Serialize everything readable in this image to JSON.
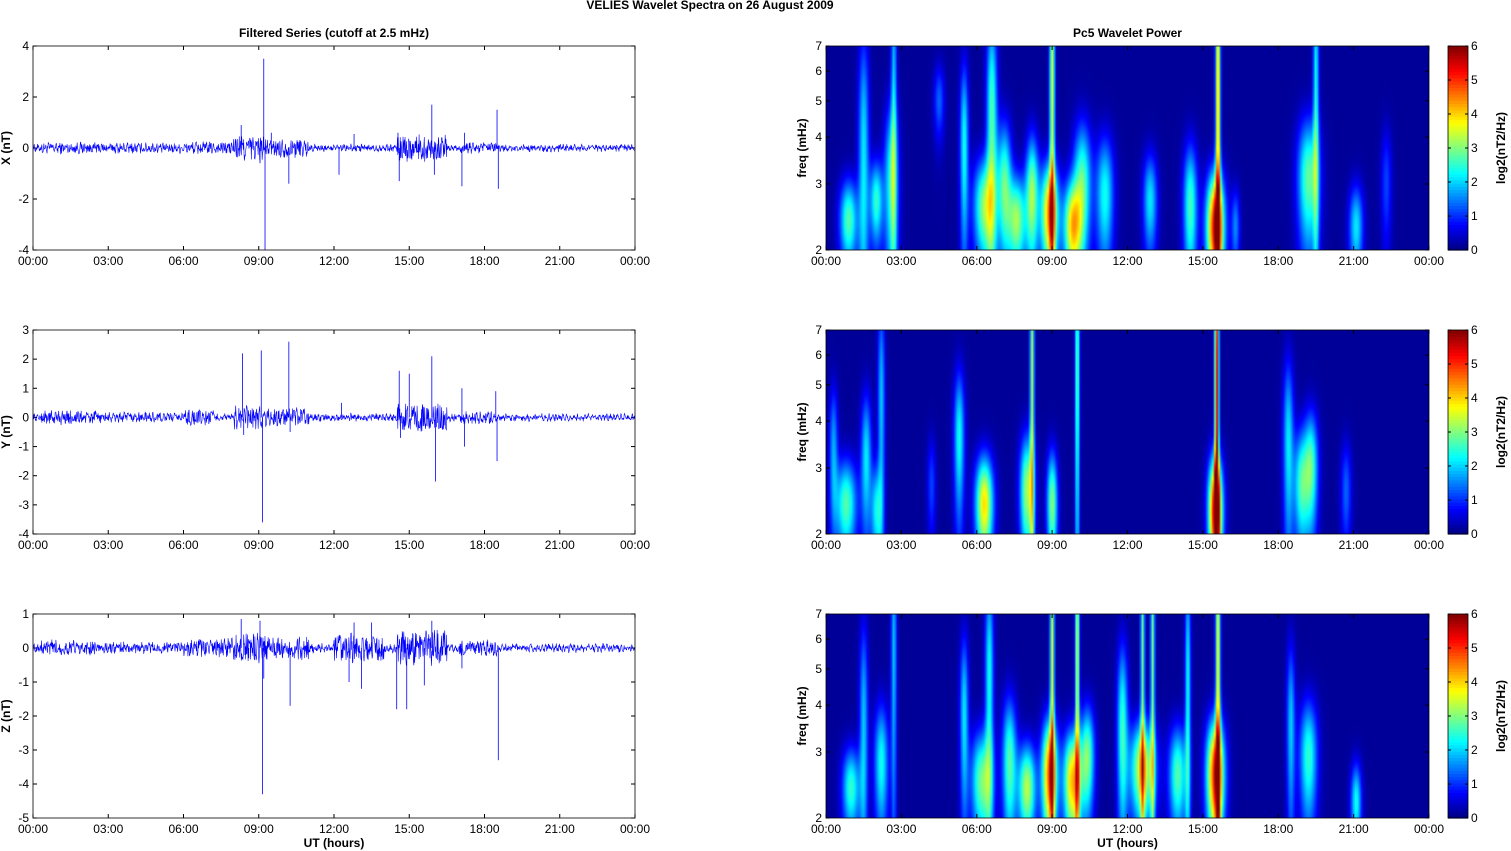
{
  "figure": {
    "title": "VELIES Wavelet Spectra on 26 August    2009"
  },
  "chart_data": [
    {
      "type": "line",
      "panel": "X",
      "title": "Filtered Series (cutoff at 2.5 mHz)",
      "xlabel": "",
      "ylabel": "X (nT)",
      "xlim": [
        0,
        24
      ],
      "ylim": [
        -4,
        4
      ],
      "xticks": [
        "00:00",
        "03:00",
        "06:00",
        "09:00",
        "12:00",
        "15:00",
        "18:00",
        "21:00",
        "00:00"
      ],
      "yticks": [
        "-4",
        "-2",
        "0",
        "2",
        "4"
      ],
      "ytick_values": [
        -4,
        -2,
        0,
        2,
        4
      ],
      "color": "#0000ff",
      "noise_amplitude_nT": 0.12,
      "active_intervals_h": [
        [
          0.3,
          2.5,
          0.2
        ],
        [
          2.5,
          6,
          0.18
        ],
        [
          6,
          8,
          0.22
        ],
        [
          8,
          9.2,
          0.5
        ],
        [
          9.2,
          11,
          0.35
        ],
        [
          14.5,
          16.5,
          0.5
        ],
        [
          17,
          18.5,
          0.2
        ]
      ],
      "spikes": [
        {
          "t": 8.3,
          "v": 0.9
        },
        {
          "t": 9.05,
          "v": -0.6
        },
        {
          "t": 9.2,
          "v": 3.5
        },
        {
          "t": 9.25,
          "v": -4.0
        },
        {
          "t": 9.5,
          "v": 0.6
        },
        {
          "t": 10.2,
          "v": -1.4
        },
        {
          "t": 12.2,
          "v": -1.05
        },
        {
          "t": 12.8,
          "v": 0.55
        },
        {
          "t": 14.55,
          "v": 0.6
        },
        {
          "t": 14.6,
          "v": -1.3
        },
        {
          "t": 15.9,
          "v": 1.7
        },
        {
          "t": 16.0,
          "v": -1.05
        },
        {
          "t": 17.1,
          "v": -1.5
        },
        {
          "t": 17.2,
          "v": 0.6
        },
        {
          "t": 18.5,
          "v": 1.5
        },
        {
          "t": 18.55,
          "v": -1.6
        }
      ]
    },
    {
      "type": "heatmap",
      "panel": "X",
      "title": "Pc5 Wavelet Power",
      "xlabel": "",
      "ylabel": "freq (mHz)",
      "xlim": [
        0,
        24
      ],
      "ylim": [
        2,
        7
      ],
      "yscale": "log",
      "xticks": [
        "00:00",
        "03:00",
        "06:00",
        "09:00",
        "12:00",
        "15:00",
        "18:00",
        "21:00",
        "00:00"
      ],
      "yticks": [
        "2",
        "3",
        "4",
        "5",
        "6",
        "7"
      ],
      "ytick_values": [
        2,
        3,
        4,
        5,
        6,
        7
      ],
      "colormap": "jet",
      "clim": [
        0,
        6
      ],
      "colorbar": {
        "label": "log2(nT2/Hz)",
        "ticks": [
          "0",
          "1",
          "2",
          "3",
          "4",
          "5",
          "6"
        ]
      },
      "blobs": [
        {
          "t": 0.9,
          "f": 2.4,
          "a": 2.6,
          "w": 0.25,
          "h": 0.45
        },
        {
          "t": 1.5,
          "f": 3.5,
          "a": 2.0,
          "w": 0.15,
          "h": 2.5
        },
        {
          "t": 2.0,
          "f": 2.7,
          "a": 2.4,
          "w": 0.18,
          "h": 0.5
        },
        {
          "t": 2.6,
          "f": 3.0,
          "a": 2.3,
          "w": 0.2,
          "h": 1.2
        },
        {
          "t": 2.7,
          "f": 5.5,
          "a": 1.8,
          "w": 0.08,
          "h": 3.5
        },
        {
          "t": 4.5,
          "f": 5.0,
          "a": 1.2,
          "w": 0.15,
          "h": 0.8
        },
        {
          "t": 5.5,
          "f": 3.8,
          "a": 2.2,
          "w": 0.12,
          "h": 1.6
        },
        {
          "t": 6.3,
          "f": 2.6,
          "a": 2.9,
          "w": 0.3,
          "h": 0.6
        },
        {
          "t": 6.6,
          "f": 4.5,
          "a": 2.6,
          "w": 0.15,
          "h": 2.5
        },
        {
          "t": 7.1,
          "f": 3.0,
          "a": 2.6,
          "w": 0.2,
          "h": 0.9
        },
        {
          "t": 7.6,
          "f": 2.4,
          "a": 3.0,
          "w": 0.25,
          "h": 0.5
        },
        {
          "t": 8.2,
          "f": 2.8,
          "a": 3.0,
          "w": 0.18,
          "h": 0.8
        },
        {
          "t": 8.9,
          "f": 2.5,
          "a": 4.2,
          "w": 0.25,
          "h": 0.6
        },
        {
          "t": 9.0,
          "f": 5.5,
          "a": 3.4,
          "w": 0.07,
          "h": 4.0
        },
        {
          "t": 9.8,
          "f": 2.3,
          "a": 3.6,
          "w": 0.25,
          "h": 0.5
        },
        {
          "t": 10.2,
          "f": 3.0,
          "a": 2.6,
          "w": 0.25,
          "h": 0.9
        },
        {
          "t": 11.1,
          "f": 2.8,
          "a": 2.2,
          "w": 0.25,
          "h": 0.8
        },
        {
          "t": 12.9,
          "f": 2.7,
          "a": 2.0,
          "w": 0.2,
          "h": 0.6
        },
        {
          "t": 14.5,
          "f": 2.6,
          "a": 2.5,
          "w": 0.2,
          "h": 0.8
        },
        {
          "t": 15.5,
          "f": 2.3,
          "a": 5.3,
          "w": 0.25,
          "h": 0.6
        },
        {
          "t": 15.6,
          "f": 5.0,
          "a": 4.0,
          "w": 0.07,
          "h": 5.0
        },
        {
          "t": 16.3,
          "f": 2.3,
          "a": 1.4,
          "w": 0.12,
          "h": 0.4
        },
        {
          "t": 19.2,
          "f": 3.1,
          "a": 2.7,
          "w": 0.3,
          "h": 0.9
        },
        {
          "t": 19.5,
          "f": 5.5,
          "a": 2.2,
          "w": 0.08,
          "h": 3.5
        },
        {
          "t": 21.1,
          "f": 2.3,
          "a": 2.0,
          "w": 0.2,
          "h": 0.45
        },
        {
          "t": 22.3,
          "f": 3.0,
          "a": 1.0,
          "w": 0.15,
          "h": 0.8
        }
      ]
    },
    {
      "type": "line",
      "panel": "Y",
      "title": "",
      "xlabel": "",
      "ylabel": "Y (nT)",
      "xlim": [
        0,
        24
      ],
      "ylim": [
        -4,
        3
      ],
      "xticks": [
        "00:00",
        "03:00",
        "06:00",
        "09:00",
        "12:00",
        "15:00",
        "18:00",
        "21:00",
        "00:00"
      ],
      "yticks": [
        "-4",
        "-3",
        "-2",
        "-1",
        "0",
        "1",
        "2",
        "3"
      ],
      "ytick_values": [
        -4,
        -3,
        -2,
        -1,
        0,
        1,
        2,
        3
      ],
      "color": "#0000ff",
      "noise_amplitude_nT": 0.1,
      "active_intervals_h": [
        [
          0.3,
          2.5,
          0.22
        ],
        [
          2.5,
          6,
          0.15
        ],
        [
          6,
          7.2,
          0.25
        ],
        [
          8,
          9.2,
          0.4
        ],
        [
          9.2,
          11,
          0.3
        ],
        [
          14.5,
          16.5,
          0.45
        ],
        [
          17,
          18.5,
          0.18
        ]
      ],
      "spikes": [
        {
          "t": 8.35,
          "v": 2.2
        },
        {
          "t": 8.4,
          "v": -0.6
        },
        {
          "t": 9.1,
          "v": 2.3
        },
        {
          "t": 9.15,
          "v": -3.6
        },
        {
          "t": 10.2,
          "v": 2.6
        },
        {
          "t": 10.25,
          "v": -0.5
        },
        {
          "t": 12.3,
          "v": 0.5
        },
        {
          "t": 14.6,
          "v": 1.6
        },
        {
          "t": 14.65,
          "v": -0.7
        },
        {
          "t": 15.0,
          "v": 1.5
        },
        {
          "t": 15.9,
          "v": 2.1
        },
        {
          "t": 16.05,
          "v": -2.2
        },
        {
          "t": 17.1,
          "v": 1.0
        },
        {
          "t": 17.2,
          "v": -1.0
        },
        {
          "t": 18.45,
          "v": 0.9
        },
        {
          "t": 18.5,
          "v": -1.5
        }
      ]
    },
    {
      "type": "heatmap",
      "panel": "Y",
      "title": "",
      "xlabel": "",
      "ylabel": "freq (mHz)",
      "xlim": [
        0,
        24
      ],
      "ylim": [
        2,
        7
      ],
      "yscale": "log",
      "xticks": [
        "00:00",
        "03:00",
        "06:00",
        "09:00",
        "12:00",
        "15:00",
        "18:00",
        "21:00",
        "00:00"
      ],
      "yticks": [
        "2",
        "3",
        "4",
        "5",
        "6",
        "7"
      ],
      "ytick_values": [
        2,
        3,
        4,
        5,
        6,
        7
      ],
      "colormap": "jet",
      "clim": [
        0,
        6
      ],
      "colorbar": {
        "label": "log2(nT2/Hz)",
        "ticks": [
          "0",
          "1",
          "2",
          "3",
          "4",
          "5",
          "6"
        ]
      },
      "blobs": [
        {
          "t": 0.3,
          "f": 3.4,
          "a": 1.6,
          "w": 0.12,
          "h": 1.0
        },
        {
          "t": 0.8,
          "f": 2.4,
          "a": 2.6,
          "w": 0.3,
          "h": 0.5
        },
        {
          "t": 1.6,
          "f": 3.2,
          "a": 2.0,
          "w": 0.15,
          "h": 1.0
        },
        {
          "t": 2.0,
          "f": 2.3,
          "a": 2.0,
          "w": 0.15,
          "h": 0.5
        },
        {
          "t": 2.2,
          "f": 4.5,
          "a": 1.8,
          "w": 0.1,
          "h": 2.5
        },
        {
          "t": 4.2,
          "f": 2.7,
          "a": 1.0,
          "w": 0.12,
          "h": 0.6
        },
        {
          "t": 5.3,
          "f": 3.6,
          "a": 2.2,
          "w": 0.15,
          "h": 1.2
        },
        {
          "t": 6.3,
          "f": 2.4,
          "a": 3.8,
          "w": 0.25,
          "h": 0.55
        },
        {
          "t": 8.0,
          "f": 2.6,
          "a": 3.1,
          "w": 0.2,
          "h": 0.7
        },
        {
          "t": 8.2,
          "f": 5.5,
          "a": 3.2,
          "w": 0.06,
          "h": 4.0
        },
        {
          "t": 9.0,
          "f": 2.4,
          "a": 2.9,
          "w": 0.15,
          "h": 0.6
        },
        {
          "t": 10.0,
          "f": 5.5,
          "a": 2.8,
          "w": 0.06,
          "h": 4.0
        },
        {
          "t": 15.5,
          "f": 2.3,
          "a": 5.5,
          "w": 0.2,
          "h": 0.6
        },
        {
          "t": 15.55,
          "f": 5.0,
          "a": 5.3,
          "w": 0.06,
          "h": 5.0
        },
        {
          "t": 18.4,
          "f": 3.5,
          "a": 2.0,
          "w": 0.15,
          "h": 1.5
        },
        {
          "t": 18.9,
          "f": 2.7,
          "a": 2.3,
          "w": 0.2,
          "h": 0.7
        },
        {
          "t": 19.3,
          "f": 3.0,
          "a": 2.6,
          "w": 0.2,
          "h": 0.8
        },
        {
          "t": 20.7,
          "f": 2.6,
          "a": 1.2,
          "w": 0.15,
          "h": 0.6
        }
      ]
    },
    {
      "type": "line",
      "panel": "Z",
      "title": "",
      "xlabel": "UT (hours)",
      "ylabel": "Z (nT)",
      "xlim": [
        0,
        24
      ],
      "ylim": [
        -5,
        1
      ],
      "xticks": [
        "00:00",
        "03:00",
        "06:00",
        "09:00",
        "12:00",
        "15:00",
        "18:00",
        "21:00",
        "00:00"
      ],
      "yticks": [
        "-5",
        "-4",
        "-3",
        "-2",
        "-1",
        "0",
        "1"
      ],
      "ytick_values": [
        -5,
        -4,
        -3,
        -2,
        -1,
        0,
        1
      ],
      "color": "#0000ff",
      "noise_amplitude_nT": 0.1,
      "active_intervals_h": [
        [
          0.3,
          2.5,
          0.2
        ],
        [
          2.5,
          6,
          0.15
        ],
        [
          6,
          8,
          0.25
        ],
        [
          8,
          9.2,
          0.4
        ],
        [
          9.2,
          11,
          0.35
        ],
        [
          12,
          14,
          0.4
        ],
        [
          14.5,
          16.5,
          0.5
        ],
        [
          17,
          18.5,
          0.2
        ]
      ],
      "spikes": [
        {
          "t": 8.3,
          "v": 0.85
        },
        {
          "t": 8.6,
          "v": -0.3
        },
        {
          "t": 9.05,
          "v": 0.8
        },
        {
          "t": 9.15,
          "v": -4.3
        },
        {
          "t": 9.2,
          "v": -0.9
        },
        {
          "t": 10.25,
          "v": -1.7
        },
        {
          "t": 12.6,
          "v": -1.0
        },
        {
          "t": 12.8,
          "v": 0.75
        },
        {
          "t": 13.1,
          "v": -1.2
        },
        {
          "t": 13.5,
          "v": 0.75
        },
        {
          "t": 14.5,
          "v": -1.8
        },
        {
          "t": 14.9,
          "v": -1.8
        },
        {
          "t": 15.6,
          "v": -1.1
        },
        {
          "t": 15.9,
          "v": 0.8
        },
        {
          "t": 17.1,
          "v": -0.6
        },
        {
          "t": 18.55,
          "v": -3.3
        }
      ]
    },
    {
      "type": "heatmap",
      "panel": "Z",
      "title": "",
      "xlabel": "UT (hours)",
      "ylabel": "freq (mHz)",
      "xlim": [
        0,
        24
      ],
      "ylim": [
        2,
        7
      ],
      "yscale": "log",
      "xticks": [
        "00:00",
        "03:00",
        "06:00",
        "09:00",
        "12:00",
        "15:00",
        "18:00",
        "21:00",
        "00:00"
      ],
      "yticks": [
        "2",
        "3",
        "4",
        "5",
        "6",
        "7"
      ],
      "ytick_values": [
        2,
        3,
        4,
        5,
        6,
        7
      ],
      "colormap": "jet",
      "clim": [
        0,
        6
      ],
      "colorbar": {
        "label": "log2(nT2/Hz)",
        "ticks": [
          "0",
          "1",
          "2",
          "3",
          "4",
          "5",
          "6"
        ]
      },
      "blobs": [
        {
          "t": 1.0,
          "f": 2.4,
          "a": 2.4,
          "w": 0.25,
          "h": 0.45
        },
        {
          "t": 1.5,
          "f": 3.5,
          "a": 1.8,
          "w": 0.12,
          "h": 2.0
        },
        {
          "t": 2.2,
          "f": 2.8,
          "a": 2.2,
          "w": 0.2,
          "h": 0.8
        },
        {
          "t": 2.7,
          "f": 5.5,
          "a": 1.8,
          "w": 0.08,
          "h": 3.5
        },
        {
          "t": 5.5,
          "f": 3.8,
          "a": 2.0,
          "w": 0.12,
          "h": 1.5
        },
        {
          "t": 6.2,
          "f": 2.5,
          "a": 2.8,
          "w": 0.3,
          "h": 0.6
        },
        {
          "t": 6.5,
          "f": 4.8,
          "a": 2.2,
          "w": 0.12,
          "h": 2.5
        },
        {
          "t": 7.3,
          "f": 2.8,
          "a": 2.6,
          "w": 0.2,
          "h": 0.9
        },
        {
          "t": 8.0,
          "f": 2.4,
          "a": 3.2,
          "w": 0.25,
          "h": 0.5
        },
        {
          "t": 8.9,
          "f": 2.6,
          "a": 4.5,
          "w": 0.22,
          "h": 0.7
        },
        {
          "t": 9.0,
          "f": 5.5,
          "a": 3.4,
          "w": 0.06,
          "h": 4.0
        },
        {
          "t": 9.8,
          "f": 2.5,
          "a": 4.0,
          "w": 0.25,
          "h": 0.6
        },
        {
          "t": 10.0,
          "f": 5.5,
          "a": 3.4,
          "w": 0.06,
          "h": 4.0
        },
        {
          "t": 10.4,
          "f": 2.9,
          "a": 2.8,
          "w": 0.2,
          "h": 0.7
        },
        {
          "t": 11.8,
          "f": 3.5,
          "a": 2.4,
          "w": 0.15,
          "h": 1.5
        },
        {
          "t": 12.6,
          "f": 2.7,
          "a": 3.6,
          "w": 0.35,
          "h": 0.6
        },
        {
          "t": 12.6,
          "f": 5.5,
          "a": 2.8,
          "w": 0.06,
          "h": 4.0
        },
        {
          "t": 13.0,
          "f": 5.5,
          "a": 2.8,
          "w": 0.06,
          "h": 4.0
        },
        {
          "t": 14.0,
          "f": 2.6,
          "a": 2.6,
          "w": 0.25,
          "h": 0.6
        },
        {
          "t": 14.4,
          "f": 4.5,
          "a": 2.2,
          "w": 0.08,
          "h": 3.0
        },
        {
          "t": 15.5,
          "f": 2.6,
          "a": 5.0,
          "w": 0.25,
          "h": 0.7
        },
        {
          "t": 15.6,
          "f": 5.2,
          "a": 3.6,
          "w": 0.07,
          "h": 5.0
        },
        {
          "t": 18.5,
          "f": 3.5,
          "a": 1.8,
          "w": 0.12,
          "h": 1.5
        },
        {
          "t": 19.2,
          "f": 2.9,
          "a": 2.4,
          "w": 0.25,
          "h": 0.8
        },
        {
          "t": 21.1,
          "f": 2.2,
          "a": 2.2,
          "w": 0.15,
          "h": 0.4
        }
      ]
    }
  ]
}
